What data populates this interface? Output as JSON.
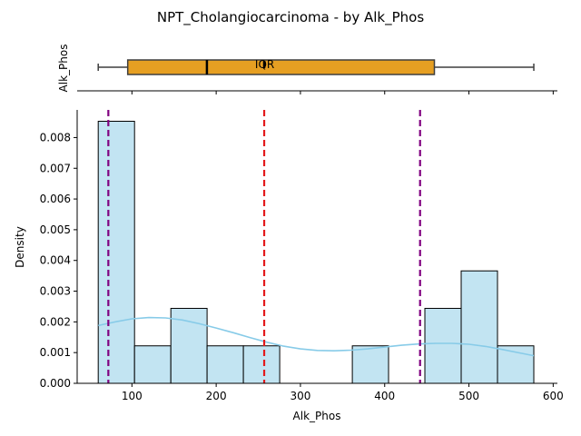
{
  "title": "NPT_Cholangiocarcinoma - by Alk_Phos",
  "chart_data": [
    {
      "type": "box",
      "ylabel": "Alk_Phos",
      "whisker_low": 60,
      "q1": 95,
      "median": 189,
      "mean": 257,
      "q3": 459,
      "whisker_high": 577,
      "annotation": "IQR",
      "color": "#e69f22",
      "xlim": [
        35,
        605
      ]
    },
    {
      "type": "histogram",
      "xlabel": "Alk_Phos",
      "ylabel": "Density",
      "xlim": [
        35,
        605
      ],
      "ylim": [
        0,
        0.0089
      ],
      "xticks": [
        100,
        200,
        300,
        400,
        500,
        600
      ],
      "yticks": [
        "0.000",
        "0.001",
        "0.002",
        "0.003",
        "0.004",
        "0.005",
        "0.006",
        "0.007",
        "0.008"
      ],
      "bins": [
        {
          "x0": 60,
          "x1": 103.1,
          "density": 0.00853
        },
        {
          "x0": 103.1,
          "x1": 146.2,
          "density": 0.00122
        },
        {
          "x0": 146.2,
          "x1": 189.2,
          "density": 0.00244
        },
        {
          "x0": 189.2,
          "x1": 232.3,
          "density": 0.00122
        },
        {
          "x0": 232.3,
          "x1": 275.4,
          "density": 0.00122
        },
        {
          "x0": 275.4,
          "x1": 318.5,
          "density": 0
        },
        {
          "x0": 318.5,
          "x1": 361.6,
          "density": 0
        },
        {
          "x0": 361.6,
          "x1": 404.6,
          "density": 0.00122
        },
        {
          "x0": 404.6,
          "x1": 447.7,
          "density": 0
        },
        {
          "x0": 447.7,
          "x1": 490.8,
          "density": 0.00244
        },
        {
          "x0": 490.8,
          "x1": 533.9,
          "density": 0.00366
        },
        {
          "x0": 533.9,
          "x1": 577,
          "density": 0.00122
        }
      ],
      "bar_color": "#c2e4f2",
      "kde": {
        "color": "#87cbe8",
        "x": [
          60,
          80,
          100,
          120,
          140,
          160,
          180,
          200,
          220,
          240,
          260,
          280,
          300,
          320,
          340,
          360,
          380,
          400,
          420,
          440,
          460,
          480,
          500,
          520,
          540,
          560,
          577
        ],
        "y": [
          0.00188,
          0.002,
          0.0021,
          0.00214,
          0.00213,
          0.00206,
          0.00194,
          0.0018,
          0.00165,
          0.00149,
          0.00134,
          0.00121,
          0.00112,
          0.00107,
          0.00106,
          0.00108,
          0.00112,
          0.00118,
          0.00124,
          0.00128,
          0.0013,
          0.0013,
          0.00127,
          0.0012,
          0.0011,
          0.00099,
          0.0009
        ]
      },
      "vlines": [
        {
          "x": 72,
          "color": "#800080"
        },
        {
          "x": 257,
          "color": "#e31a1c"
        },
        {
          "x": 442,
          "color": "#800080"
        }
      ]
    }
  ]
}
